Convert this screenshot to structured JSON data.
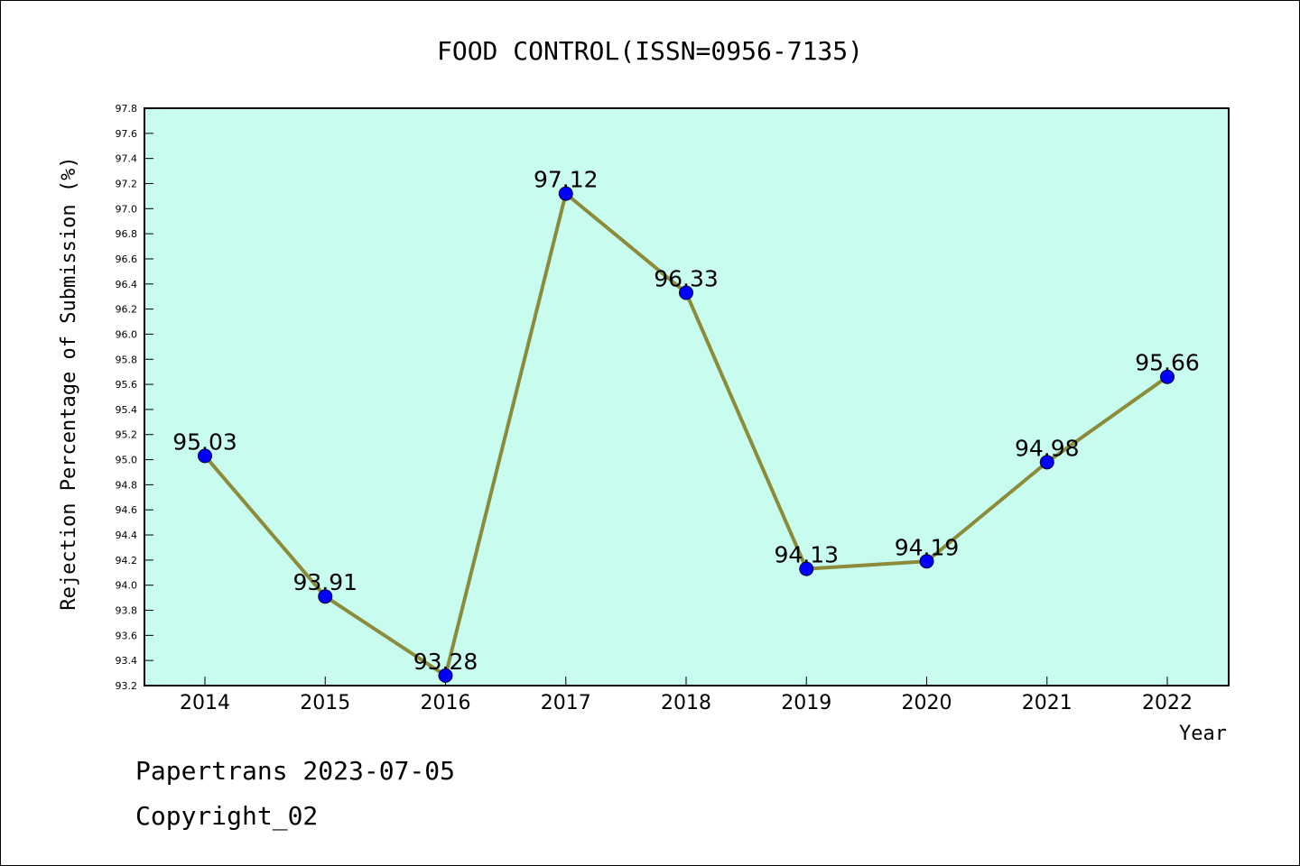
{
  "chart_data": {
    "type": "line",
    "title": "FOOD CONTROL(ISSN=0956-7135)",
    "xlabel": "Year",
    "ylabel": "Rejection Percentage of Submission (%)",
    "x": [
      "2014",
      "2015",
      "2016",
      "2017",
      "2018",
      "2019",
      "2020",
      "2021",
      "2022"
    ],
    "values": [
      95.03,
      93.91,
      93.28,
      97.12,
      96.33,
      94.13,
      94.19,
      94.98,
      95.66
    ],
    "data_labels": [
      "95.03",
      "93.91",
      "93.28",
      "97.12",
      "96.33",
      "94.13",
      "94.19",
      "94.98",
      "95.66"
    ],
    "ylim": [
      93.2,
      97.8
    ],
    "yticks": [
      "93.2",
      "93.4",
      "93.6",
      "93.8",
      "94.0",
      "94.2",
      "94.4",
      "94.6",
      "94.8",
      "95.0",
      "95.2",
      "95.4",
      "95.6",
      "95.8",
      "96.0",
      "96.2",
      "96.4",
      "96.6",
      "96.8",
      "97.0",
      "97.2",
      "97.4",
      "97.6",
      "97.8"
    ],
    "grid": false,
    "colors": {
      "plot_background": "#c8fcee",
      "line": "#8b8b3a",
      "marker": "#0000ff"
    }
  },
  "footer": {
    "line1": "Papertrans 2023-07-05",
    "line2": "Copyright_02"
  }
}
